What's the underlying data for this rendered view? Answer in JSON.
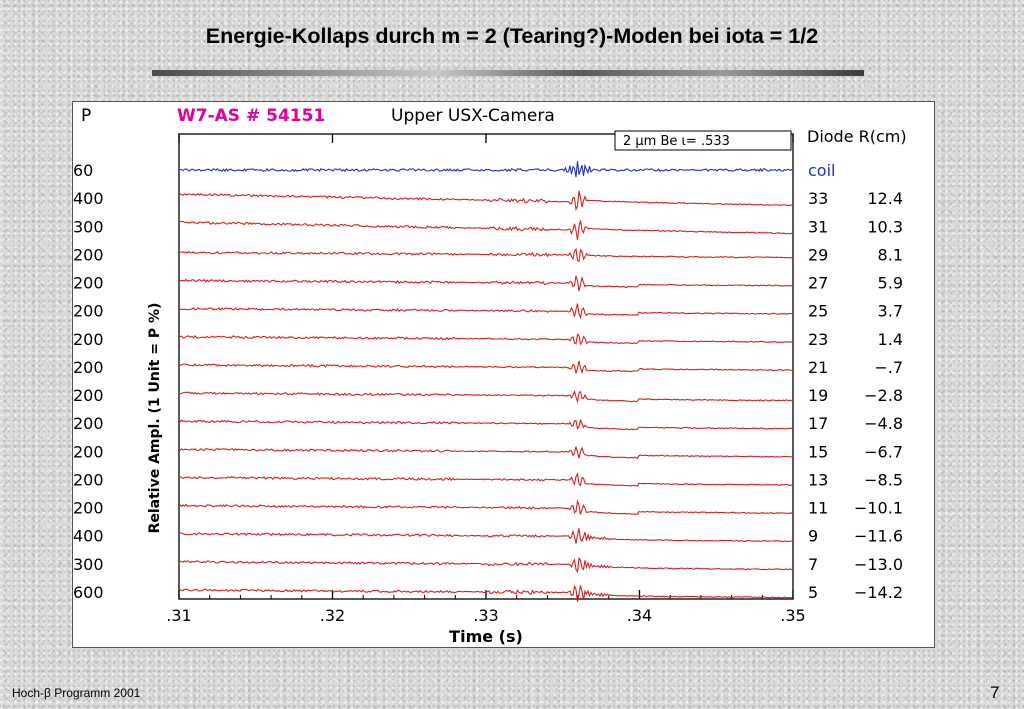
{
  "slide": {
    "title": "Energie-Kollaps durch m = 2 (Tearing?)-Moden bei iota = 1/2",
    "footer": "Hoch-β Programm 2001",
    "page_number": "7"
  },
  "chart_data": {
    "type": "line",
    "header_left": "P",
    "header_shot": "W7-AS # 54151",
    "header_camera": "Upper USX-Camera",
    "info_box": "2 μm Be ι= .533",
    "diode_header": "Diode R(cm)",
    "xlabel": "Time (s)",
    "ylabel": "Relative Ampl. (1 Unit = P %)",
    "xlim": [
      0.31,
      0.35
    ],
    "x_ticks": [
      ".31",
      ".32",
      ".33",
      ".34",
      ".35"
    ],
    "collapse_time": 0.336,
    "grid": false,
    "colors": {
      "coil": "#1f2fbf",
      "diodes": "#d42020"
    },
    "traces": [
      {
        "p": "60",
        "diode": "coil",
        "radius": ""
      },
      {
        "p": "400",
        "diode": "33",
        "radius": "12.4"
      },
      {
        "p": "300",
        "diode": "31",
        "radius": "10.3"
      },
      {
        "p": "200",
        "diode": "29",
        "radius": "8.1"
      },
      {
        "p": "200",
        "diode": "27",
        "radius": "5.9"
      },
      {
        "p": "200",
        "diode": "25",
        "radius": "3.7"
      },
      {
        "p": "200",
        "diode": "23",
        "radius": "1.4"
      },
      {
        "p": "200",
        "diode": "21",
        "radius": "−.7"
      },
      {
        "p": "200",
        "diode": "19",
        "radius": "−2.8"
      },
      {
        "p": "200",
        "diode": "17",
        "radius": "−4.8"
      },
      {
        "p": "200",
        "diode": "15",
        "radius": "−6.7"
      },
      {
        "p": "200",
        "diode": "13",
        "radius": "−8.5"
      },
      {
        "p": "200",
        "diode": "11",
        "radius": "−10.1"
      },
      {
        "p": "400",
        "diode": "9",
        "radius": "−11.6"
      },
      {
        "p": "300",
        "diode": "7",
        "radius": "−13.0"
      },
      {
        "p": "600",
        "diode": "5",
        "radius": "−14.2"
      }
    ]
  }
}
